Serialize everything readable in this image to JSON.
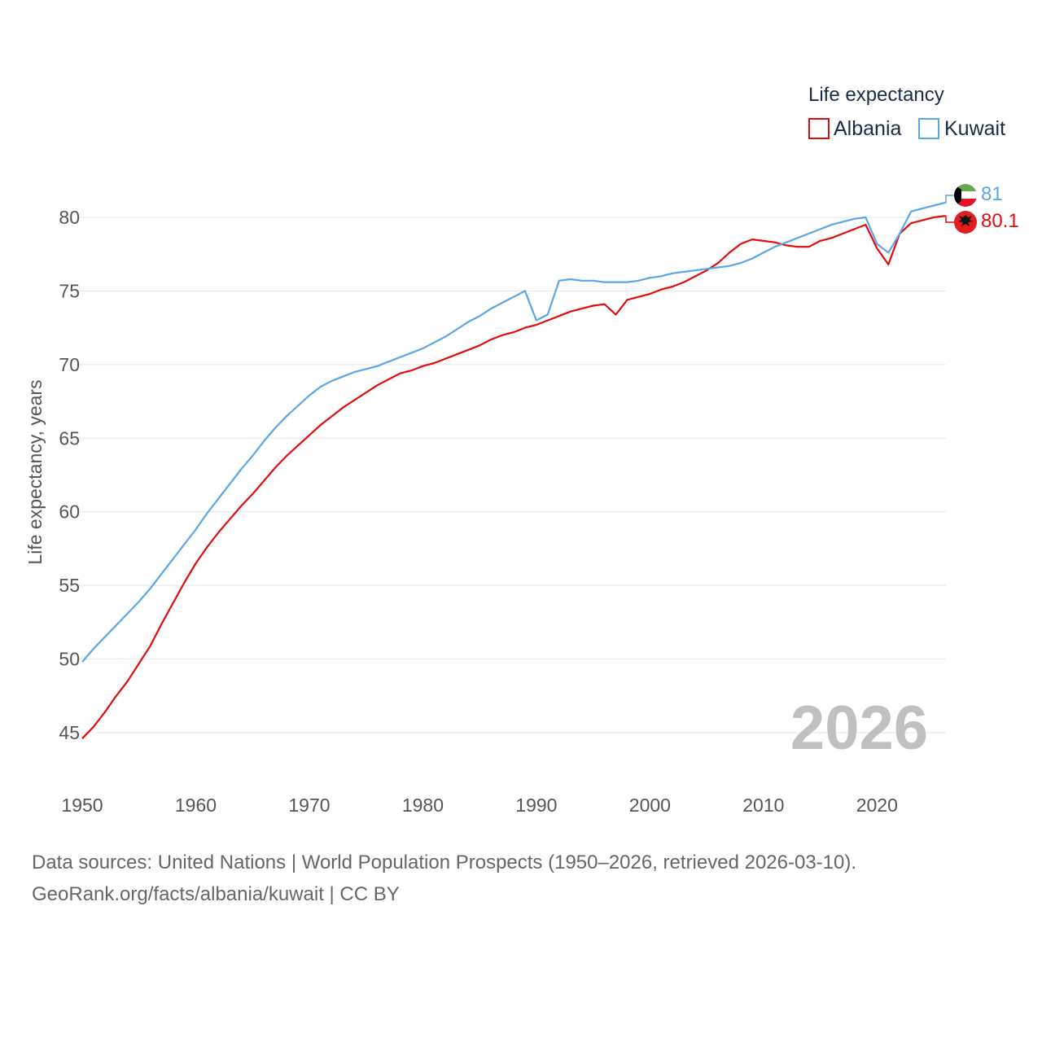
{
  "chart_data": {
    "type": "line",
    "ylabel": "Life expectancy, years",
    "xlim": [
      1950,
      2026
    ],
    "ylim": [
      43,
      82.5
    ],
    "yticks": [
      45,
      50,
      55,
      60,
      65,
      70,
      75,
      80
    ],
    "xticks": [
      1950,
      1960,
      1970,
      1980,
      1990,
      2000,
      2010,
      2020
    ],
    "current_year": "2026",
    "legend": {
      "title": "Life expectancy",
      "position": "top-right"
    },
    "x": [
      1950,
      1951,
      1952,
      1953,
      1954,
      1955,
      1956,
      1957,
      1958,
      1959,
      1960,
      1961,
      1962,
      1963,
      1964,
      1965,
      1966,
      1967,
      1968,
      1969,
      1970,
      1971,
      1972,
      1973,
      1974,
      1975,
      1976,
      1977,
      1978,
      1979,
      1980,
      1981,
      1982,
      1983,
      1984,
      1985,
      1986,
      1987,
      1988,
      1989,
      1990,
      1991,
      1992,
      1993,
      1994,
      1995,
      1996,
      1997,
      1998,
      1999,
      2000,
      2001,
      2002,
      2003,
      2004,
      2005,
      2006,
      2007,
      2008,
      2009,
      2010,
      2011,
      2012,
      2013,
      2014,
      2015,
      2016,
      2017,
      2018,
      2019,
      2020,
      2021,
      2022,
      2023,
      2024,
      2025,
      2026
    ],
    "series": [
      {
        "name": "Albania",
        "color": "#e30c0c",
        "end_label": "80.1",
        "values": [
          44.6,
          45.4,
          46.4,
          47.5,
          48.5,
          49.7,
          50.9,
          52.4,
          53.8,
          55.2,
          56.5,
          57.6,
          58.6,
          59.5,
          60.4,
          61.2,
          62.1,
          63.0,
          63.8,
          64.5,
          65.2,
          65.9,
          66.5,
          67.1,
          67.6,
          68.1,
          68.6,
          69.0,
          69.4,
          69.6,
          69.9,
          70.1,
          70.4,
          70.7,
          71.0,
          71.3,
          71.7,
          72.0,
          72.2,
          72.5,
          72.7,
          73.0,
          73.3,
          73.6,
          73.8,
          74.0,
          74.1,
          73.4,
          74.4,
          74.6,
          74.8,
          75.1,
          75.3,
          75.6,
          76.0,
          76.4,
          76.9,
          77.6,
          78.2,
          78.5,
          78.4,
          78.3,
          78.1,
          78.0,
          78.0,
          78.4,
          78.6,
          78.9,
          79.2,
          79.5,
          77.9,
          76.8,
          78.9,
          79.6,
          79.8,
          80.0,
          80.1
        ]
      },
      {
        "name": "Kuwait",
        "color": "#5aa6e8",
        "end_label": "81",
        "values": [
          49.8,
          50.7,
          51.5,
          52.3,
          53.1,
          53.9,
          54.8,
          55.8,
          56.8,
          57.8,
          58.8,
          59.9,
          60.9,
          61.9,
          62.9,
          63.8,
          64.8,
          65.7,
          66.5,
          67.2,
          67.9,
          68.5,
          68.9,
          69.2,
          69.5,
          69.7,
          69.9,
          70.2,
          70.5,
          70.8,
          71.1,
          71.5,
          71.9,
          72.4,
          72.9,
          73.3,
          73.8,
          74.2,
          74.6,
          75.0,
          73.0,
          73.4,
          75.7,
          75.8,
          75.7,
          75.7,
          75.6,
          75.6,
          75.6,
          75.7,
          75.9,
          76.0,
          76.2,
          76.3,
          76.4,
          76.5,
          76.6,
          76.7,
          76.9,
          77.2,
          77.6,
          78.0,
          78.3,
          78.6,
          78.9,
          79.2,
          79.5,
          79.7,
          79.9,
          80.0,
          78.2,
          77.6,
          78.9,
          80.4,
          80.6,
          80.8,
          81.0
        ]
      }
    ]
  },
  "footer": {
    "line1": "Data sources: United Nations | World Population Prospects (1950–2026, retrieved 2026-03-10).",
    "line2": "GeoRank.org/facts/albania/kuwait | CC BY"
  }
}
